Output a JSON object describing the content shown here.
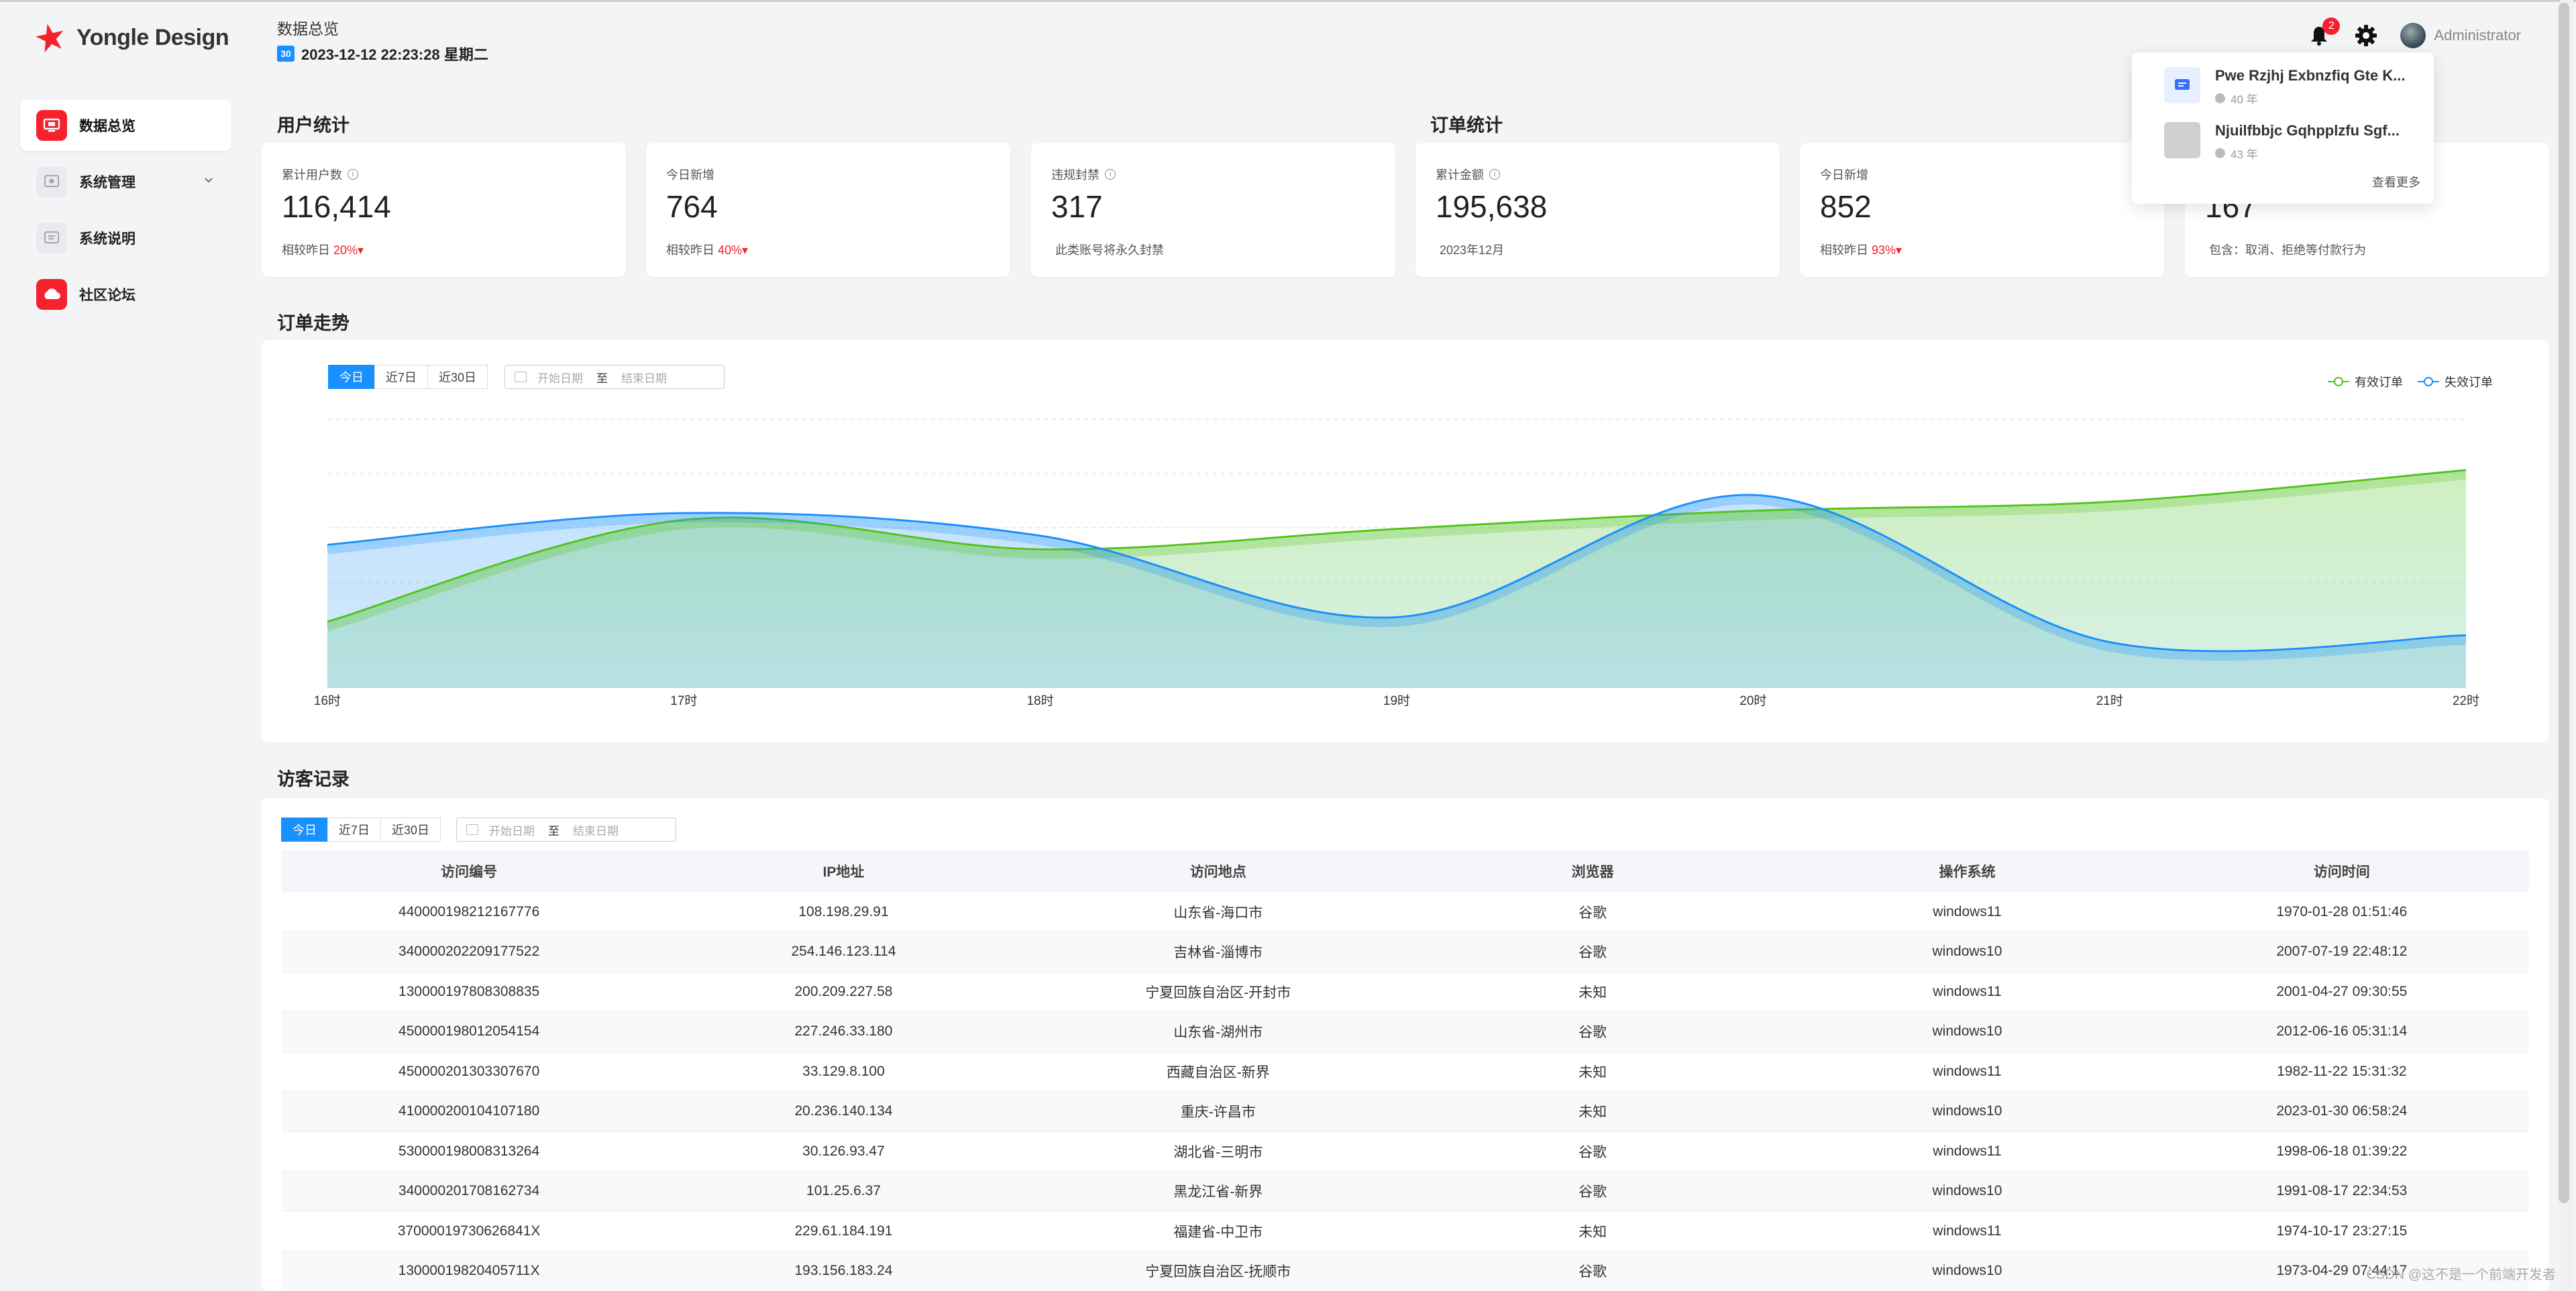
{
  "app": {
    "name": "Yongle Design"
  },
  "sidebar": {
    "items": [
      {
        "label": "数据总览",
        "icon": "monitor-icon",
        "active": true
      },
      {
        "label": "系统管理",
        "icon": "settings-box-icon",
        "active": false,
        "has_children": true
      },
      {
        "label": "系统说明",
        "icon": "document-icon",
        "active": false
      },
      {
        "label": "社区论坛",
        "icon": "cloud-icon",
        "active": false
      }
    ]
  },
  "header": {
    "title": "数据总览",
    "datetime": "2023-12-12 22:23:28 星期二",
    "calendar_badge": "30",
    "notification_count": "2",
    "username": "Administrator"
  },
  "sections": {
    "user_stats": "用户统计",
    "order_stats": "订单统计",
    "order_trend": "订单走势",
    "visitors": "访客记录"
  },
  "user_cards": [
    {
      "label": "累计用户数",
      "value": "116,414",
      "foot": "相较昨日",
      "pct": "20%"
    },
    {
      "label": "今日新增",
      "value": "764",
      "foot": "相较昨日",
      "pct": "40%"
    },
    {
      "label": "违规封禁",
      "value": "317",
      "foot": "此类账号将永久封禁",
      "pct": ""
    }
  ],
  "order_cards": [
    {
      "label": "累计金额",
      "value": "195,638",
      "foot": "2023年12月",
      "pct": ""
    },
    {
      "label": "今日新增",
      "value": "852",
      "foot": "相较昨日",
      "pct": "93%"
    },
    {
      "label": "",
      "value": "167",
      "foot": "包含：取消、拒绝等付款行为",
      "pct": ""
    }
  ],
  "filters": {
    "tabs": [
      "今日",
      "近7日",
      "近30日"
    ],
    "start_placeholder": "开始日期",
    "to": "至",
    "end_placeholder": "结束日期"
  },
  "chart_data": {
    "type": "area",
    "x": [
      "16时",
      "17时",
      "18时",
      "19时",
      "20时",
      "21时",
      "22时"
    ],
    "series": [
      {
        "name": "有效订单",
        "color": "#52c41a",
        "values": [
          29,
          74,
          61,
          70,
          78,
          82,
          96
        ]
      },
      {
        "name": "失效订单",
        "color": "#1890ff",
        "values": [
          63,
          77,
          67,
          31,
          85,
          20,
          23
        ]
      }
    ],
    "ylim": [
      0,
      120
    ],
    "grid": true,
    "legend": "top-right"
  },
  "table": {
    "columns": [
      "访问编号",
      "IP地址",
      "访问地点",
      "浏览器",
      "操作系统",
      "访问时间"
    ],
    "rows": [
      [
        "440000198212167776",
        "108.198.29.91",
        "山东省-海口市",
        "谷歌",
        "windows11",
        "1970-01-28 01:51:46"
      ],
      [
        "340000202209177522",
        "254.146.123.114",
        "吉林省-淄博市",
        "谷歌",
        "windows10",
        "2007-07-19 22:48:12"
      ],
      [
        "130000197808308835",
        "200.209.227.58",
        "宁夏回族自治区-开封市",
        "未知",
        "windows11",
        "2001-04-27 09:30:55"
      ],
      [
        "450000198012054154",
        "227.246.33.180",
        "山东省-湖州市",
        "谷歌",
        "windows10",
        "2012-06-16 05:31:14"
      ],
      [
        "450000201303307670",
        "33.129.8.100",
        "西藏自治区-新界",
        "未知",
        "windows11",
        "1982-11-22 15:31:32"
      ],
      [
        "410000200104107180",
        "20.236.140.134",
        "重庆-许昌市",
        "未知",
        "windows10",
        "2023-01-30 06:58:24"
      ],
      [
        "530000198008313264",
        "30.126.93.47",
        "湖北省-三明市",
        "谷歌",
        "windows11",
        "1998-06-18 01:39:22"
      ],
      [
        "340000201708162734",
        "101.25.6.37",
        "黑龙江省-新界",
        "谷歌",
        "windows10",
        "1991-08-17 22:34:53"
      ],
      [
        "37000019730626841X",
        "229.61.184.191",
        "福建省-中卫市",
        "未知",
        "windows11",
        "1974-10-17 23:27:15"
      ],
      [
        "13000019820405711X",
        "193.156.183.24",
        "宁夏回族自治区-抚顺市",
        "谷歌",
        "windows10",
        "1973-04-29 07:44:17"
      ]
    ]
  },
  "popup": {
    "items": [
      {
        "title": "Pwe Rzjhj Exbnzfiq Gte K...",
        "time": "40 年"
      },
      {
        "title": "Njuilfbbjc Gqhpplzfu Sgf...",
        "time": "43 年"
      }
    ],
    "more": "查看更多"
  },
  "watermark": "CSDN @这不是一个前端开发者"
}
